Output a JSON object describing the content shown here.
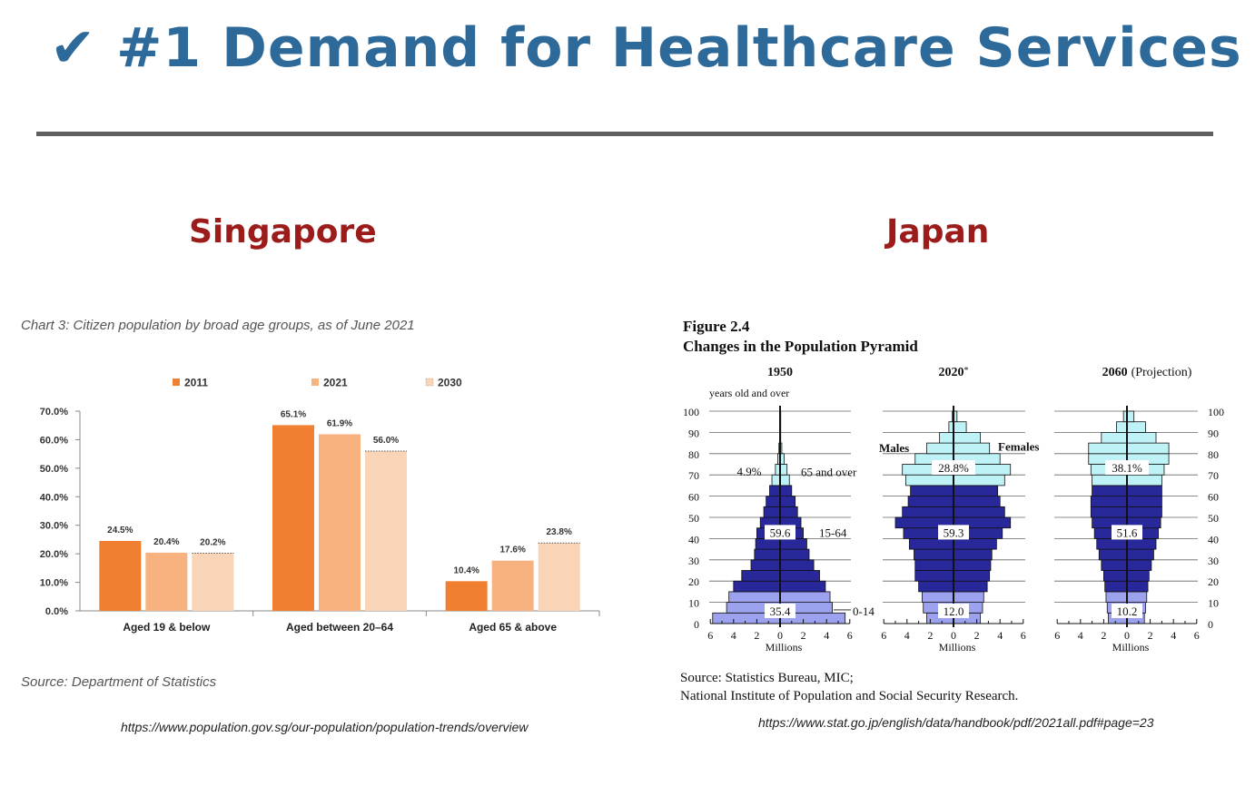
{
  "slide": {
    "title": "✔ #1 Demand for Healthcare Services",
    "left_heading": "Singapore",
    "right_heading": "Japan",
    "sg_caption": "Chart 3: Citizen population by broad age groups, as of June 2021",
    "sg_source": "Source: Department of Statistics",
    "sg_url": "https://www.population.gov.sg/our-population/population-trends/overview",
    "jp_figure_number": "Figure 2.4",
    "jp_figure_title": "Changes in the Population Pyramid",
    "jp_source_line1": "Source:  Statistics Bureau, MIC;",
    "jp_source_line2": "National Institute of Population and Social Security Research.",
    "jp_url": "https://www.stat.go.jp/english/data/handbook/pdf/2021all.pdf#page=23"
  },
  "chart_data": [
    {
      "type": "bar",
      "categories": [
        "Aged 19 & below",
        "Aged between 20–64",
        "Aged 65 & above"
      ],
      "series": [
        {
          "name": "2011",
          "values": [
            24.5,
            65.1,
            10.4
          ],
          "color": "#f07f32"
        },
        {
          "name": "2021",
          "values": [
            20.4,
            61.9,
            17.6
          ],
          "color": "#f8b27f"
        },
        {
          "name": "2030",
          "values": [
            20.2,
            56.0,
            23.8
          ],
          "color": "#f9d4b6"
        }
      ],
      "ylim": [
        0,
        70
      ],
      "yticks": [
        "0.0%",
        "10.0%",
        "20.0%",
        "30.0%",
        "40.0%",
        "50.0%",
        "60.0%",
        "70.0%"
      ],
      "value_labels": [
        [
          "24.5%",
          "65.1%",
          "10.4%"
        ],
        [
          "20.4%",
          "61.9%",
          "17.6%"
        ],
        [
          "20.2%",
          "56.0%",
          "23.8%"
        ]
      ],
      "legend": "top",
      "grid": false
    },
    {
      "type": "population-pyramid",
      "age_axis_label": "years old and over",
      "age_ticks": [
        "0",
        "10",
        "20",
        "30",
        "40",
        "50",
        "60",
        "70",
        "80",
        "90",
        "100"
      ],
      "x_ticks": [
        "6",
        "4",
        "2",
        "0",
        "2",
        "4",
        "6"
      ],
      "x_unit": "Millions",
      "sex_labels": [
        "Males",
        "Females"
      ],
      "group_labels": [
        "0-14",
        "15-64",
        "65 and over"
      ],
      "colors": {
        "young": "#9da2ee",
        "working": "#28289a",
        "elderly": "#bff2f7"
      },
      "panels": [
        {
          "year": "1950",
          "year_note": "",
          "shares": {
            "young": "35.4",
            "working": "59.6",
            "elderly": "4.9%"
          },
          "bands": [
            {
              "from": 0,
              "to": 5,
              "male": 5.8,
              "female": 5.6
            },
            {
              "from": 5,
              "to": 10,
              "male": 4.6,
              "female": 4.5
            },
            {
              "from": 10,
              "to": 15,
              "male": 4.4,
              "female": 4.3
            },
            {
              "from": 15,
              "to": 20,
              "male": 4.0,
              "female": 3.9
            },
            {
              "from": 20,
              "to": 25,
              "male": 3.3,
              "female": 3.4
            },
            {
              "from": 25,
              "to": 30,
              "male": 2.5,
              "female": 2.9
            },
            {
              "from": 30,
              "to": 35,
              "male": 2.2,
              "female": 2.5
            },
            {
              "from": 35,
              "to": 40,
              "male": 2.1,
              "female": 2.3
            },
            {
              "from": 40,
              "to": 45,
              "male": 2.0,
              "female": 2.0
            },
            {
              "from": 45,
              "to": 50,
              "male": 1.7,
              "female": 1.8
            },
            {
              "from": 50,
              "to": 55,
              "male": 1.4,
              "female": 1.5
            },
            {
              "from": 55,
              "to": 60,
              "male": 1.2,
              "female": 1.3
            },
            {
              "from": 60,
              "to": 65,
              "male": 0.9,
              "female": 1.0
            },
            {
              "from": 65,
              "to": 70,
              "male": 0.7,
              "female": 0.8
            },
            {
              "from": 70,
              "to": 75,
              "male": 0.4,
              "female": 0.6
            },
            {
              "from": 75,
              "to": 80,
              "male": 0.2,
              "female": 0.35
            },
            {
              "from": 80,
              "to": 85,
              "male": 0.1,
              "female": 0.15
            },
            {
              "from": 85,
              "to": 100,
              "male": 0.04,
              "female": 0.06
            }
          ]
        },
        {
          "year": "2020",
          "year_note": "*",
          "shares": {
            "young": "12.0",
            "working": "59.3",
            "elderly": "28.8%"
          },
          "bands": [
            {
              "from": 0,
              "to": 5,
              "male": 2.3,
              "female": 2.3
            },
            {
              "from": 5,
              "to": 10,
              "male": 2.6,
              "female": 2.5
            },
            {
              "from": 10,
              "to": 15,
              "male": 2.7,
              "female": 2.6
            },
            {
              "from": 15,
              "to": 20,
              "male": 3.0,
              "female": 2.9
            },
            {
              "from": 20,
              "to": 25,
              "male": 3.3,
              "female": 3.1
            },
            {
              "from": 25,
              "to": 30,
              "male": 3.3,
              "female": 3.2
            },
            {
              "from": 30,
              "to": 35,
              "male": 3.4,
              "female": 3.3
            },
            {
              "from": 35,
              "to": 40,
              "male": 3.8,
              "female": 3.7
            },
            {
              "from": 40,
              "to": 45,
              "male": 4.3,
              "female": 4.2
            },
            {
              "from": 45,
              "to": 50,
              "male": 5.0,
              "female": 4.9
            },
            {
              "from": 50,
              "to": 55,
              "male": 4.4,
              "female": 4.4
            },
            {
              "from": 55,
              "to": 60,
              "male": 3.9,
              "female": 4.0
            },
            {
              "from": 60,
              "to": 65,
              "male": 3.7,
              "female": 3.8
            },
            {
              "from": 65,
              "to": 70,
              "male": 4.1,
              "female": 4.4
            },
            {
              "from": 70,
              "to": 75,
              "male": 4.4,
              "female": 4.9
            },
            {
              "from": 75,
              "to": 80,
              "male": 3.3,
              "female": 4.0
            },
            {
              "from": 80,
              "to": 85,
              "male": 2.3,
              "female": 3.1
            },
            {
              "from": 85,
              "to": 90,
              "male": 1.2,
              "female": 2.3
            },
            {
              "from": 90,
              "to": 95,
              "male": 0.4,
              "female": 1.1
            },
            {
              "from": 95,
              "to": 100,
              "male": 0.1,
              "female": 0.3
            }
          ]
        },
        {
          "year": "2060",
          "year_note": "(Projection)",
          "shares": {
            "young": "10.2",
            "working": "51.6",
            "elderly": "38.1%"
          },
          "bands": [
            {
              "from": 0,
              "to": 5,
              "male": 1.6,
              "female": 1.5
            },
            {
              "from": 5,
              "to": 10,
              "male": 1.7,
              "female": 1.6
            },
            {
              "from": 10,
              "to": 15,
              "male": 1.8,
              "female": 1.7
            },
            {
              "from": 15,
              "to": 20,
              "male": 1.9,
              "female": 1.8
            },
            {
              "from": 20,
              "to": 25,
              "male": 2.0,
              "female": 1.9
            },
            {
              "from": 25,
              "to": 30,
              "male": 2.2,
              "female": 2.1
            },
            {
              "from": 30,
              "to": 35,
              "male": 2.4,
              "female": 2.3
            },
            {
              "from": 35,
              "to": 40,
              "male": 2.6,
              "female": 2.5
            },
            {
              "from": 40,
              "to": 45,
              "male": 2.8,
              "female": 2.7
            },
            {
              "from": 45,
              "to": 50,
              "male": 3.0,
              "female": 2.9
            },
            {
              "from": 50,
              "to": 55,
              "male": 3.1,
              "female": 3.0
            },
            {
              "from": 55,
              "to": 60,
              "male": 3.1,
              "female": 3.0
            },
            {
              "from": 60,
              "to": 65,
              "male": 3.0,
              "female": 3.0
            },
            {
              "from": 65,
              "to": 70,
              "male": 3.0,
              "female": 3.0
            },
            {
              "from": 70,
              "to": 75,
              "male": 3.1,
              "female": 3.2
            },
            {
              "from": 75,
              "to": 80,
              "male": 3.3,
              "female": 3.6
            },
            {
              "from": 80,
              "to": 85,
              "male": 3.3,
              "female": 3.6
            },
            {
              "from": 85,
              "to": 90,
              "male": 2.2,
              "female": 2.5
            },
            {
              "from": 90,
              "to": 95,
              "male": 0.9,
              "female": 1.6
            },
            {
              "from": 95,
              "to": 100,
              "male": 0.3,
              "female": 0.6
            }
          ]
        }
      ]
    }
  ]
}
